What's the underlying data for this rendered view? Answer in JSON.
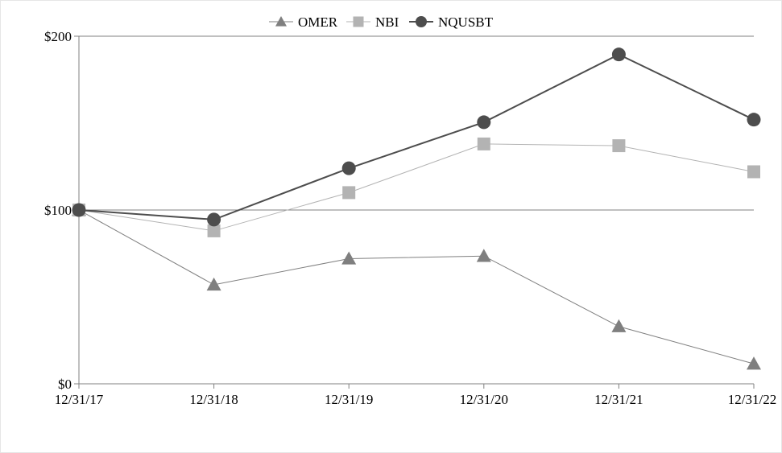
{
  "chart_data": {
    "type": "line",
    "title": "",
    "xlabel": "",
    "ylabel": "",
    "categories": [
      "12/31/17",
      "12/31/18",
      "12/31/19",
      "12/31/20",
      "12/31/21",
      "12/31/22"
    ],
    "ylim": [
      0,
      200
    ],
    "y_ticks": [
      0,
      100,
      200
    ],
    "y_tick_labels": [
      "$0",
      "$100",
      "$200"
    ],
    "grid": "horizontal",
    "legend_position": "top-center",
    "series": [
      {
        "name": "OMER",
        "marker": "triangle",
        "color": "#7f7f7f",
        "values": [
          100,
          57,
          72,
          73.5,
          33,
          11.5
        ]
      },
      {
        "name": "NBI",
        "marker": "square",
        "color": "#b3b3b3",
        "values": [
          100,
          88,
          110,
          138,
          137,
          122
        ]
      },
      {
        "name": "NQUSBT",
        "marker": "circle",
        "color": "#4d4d4d",
        "values": [
          100,
          94.5,
          124,
          150.5,
          189.5,
          152
        ]
      }
    ]
  }
}
